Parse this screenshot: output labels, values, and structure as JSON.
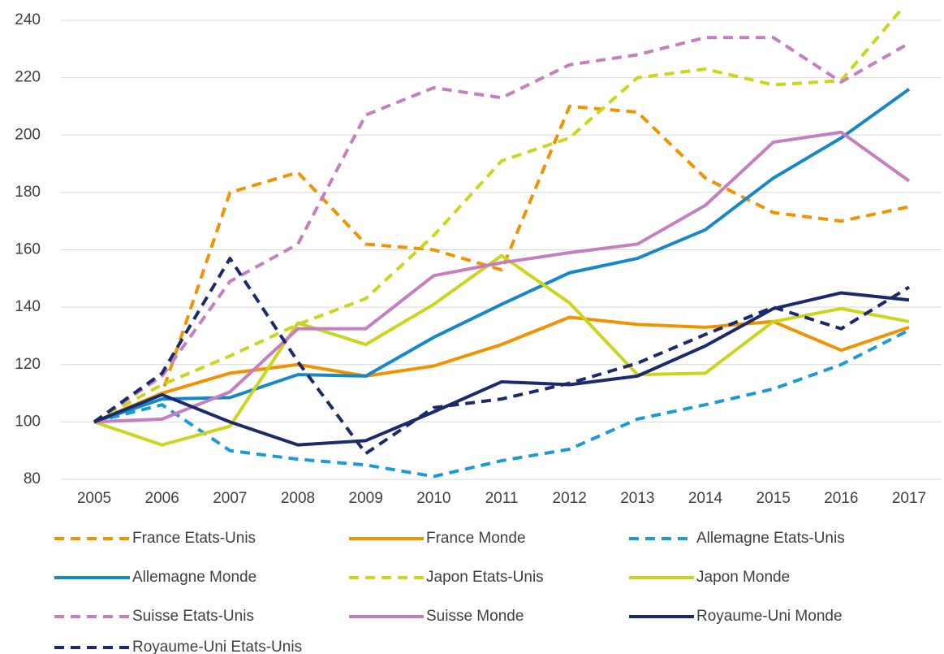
{
  "chart_data": {
    "type": "line",
    "categories": [
      "2005",
      "2006",
      "2007",
      "2008",
      "2009",
      "2010",
      "2011",
      "2012",
      "2013",
      "2014",
      "2015",
      "2016",
      "2017"
    ],
    "ylim": [
      80,
      244
    ],
    "yticks": [
      80,
      100,
      120,
      140,
      160,
      180,
      200,
      220,
      240
    ],
    "grid": true,
    "legend": "bottom",
    "series": [
      {
        "name": "France Etats-Unis",
        "color": "#f39200",
        "dashed": true,
        "values": [
          100,
          110,
          180,
          187,
          162,
          160,
          153,
          210,
          208,
          185,
          173,
          170,
          175
        ]
      },
      {
        "name": "France Monde",
        "color": "#f39200",
        "dashed": false,
        "values": [
          100,
          110,
          117,
          120,
          116,
          119.5,
          127,
          136.5,
          134,
          133,
          135,
          125,
          133
        ]
      },
      {
        "name": "Allemagne Etats-Unis",
        "color": "#1a9bd7",
        "dashed": true,
        "values": [
          100,
          106,
          90,
          87,
          85,
          81,
          86.5,
          90.5,
          101,
          106,
          111.5,
          120,
          132
        ]
      },
      {
        "name": "Allemagne Monde",
        "color": "#1589c8",
        "dashed": false,
        "values": [
          100,
          108,
          108.5,
          116.5,
          116,
          129.5,
          141,
          152,
          157,
          167,
          185,
          199,
          216
        ]
      },
      {
        "name": "Japon Etats-Unis",
        "color": "#cbd51c",
        "dashed": true,
        "values": [
          100,
          113,
          123,
          134,
          143,
          165,
          191,
          199,
          220,
          223,
          217.5,
          219,
          247
        ]
      },
      {
        "name": "Japon Monde",
        "color": "#cbd51c",
        "dashed": false,
        "values": [
          100,
          92,
          98.5,
          134.5,
          127,
          141,
          158,
          141.5,
          116.5,
          117,
          135,
          139.5,
          135
        ]
      },
      {
        "name": "Suisse Etats-Unis",
        "color": "#c57fc0",
        "dashed": true,
        "values": [
          100,
          116,
          149,
          162,
          207,
          216.5,
          213,
          224.5,
          228,
          234,
          234,
          218.5,
          232
        ]
      },
      {
        "name": "Suisse Monde",
        "color": "#c57fc0",
        "dashed": false,
        "values": [
          100,
          101,
          110.5,
          132.5,
          132.5,
          151,
          155.5,
          159,
          162,
          175.5,
          197.5,
          201,
          184
        ]
      },
      {
        "name": "Royaume-Uni Monde",
        "color": "#1c2a6b",
        "dashed": false,
        "values": [
          100,
          109.5,
          100,
          92,
          93.5,
          103.5,
          114,
          113,
          116,
          126.5,
          139.5,
          145,
          142.5
        ]
      },
      {
        "name": "Royaume-Uni Etats-Unis",
        "color": "#1c2a6b",
        "dashed": true,
        "values": [
          100,
          117,
          157,
          121,
          89,
          105,
          108,
          113.5,
          120.5,
          130.5,
          140,
          132.5,
          147
        ]
      }
    ]
  }
}
